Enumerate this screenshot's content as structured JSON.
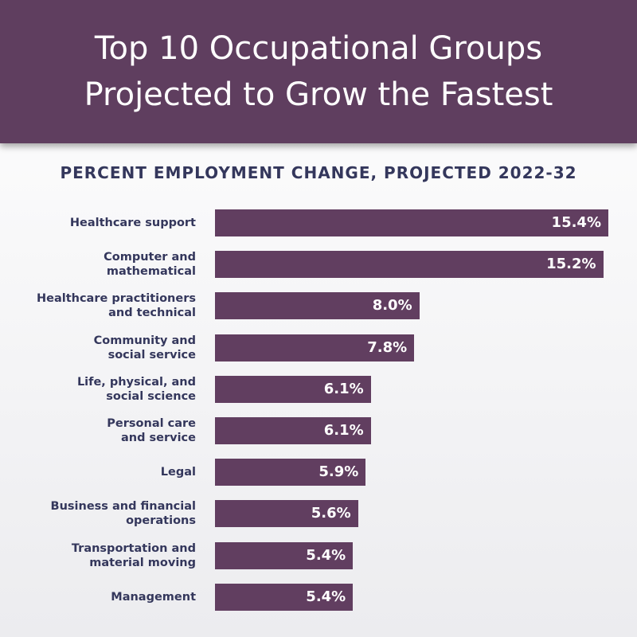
{
  "chart_data": {
    "type": "bar",
    "orientation": "horizontal",
    "title": "Top 10 Occupational Groups\nProjected to Grow the Fastest",
    "subtitle": "PERCENT EMPLOYMENT CHANGE, PROJECTED 2022-32",
    "categories": [
      "Healthcare support",
      "Computer and\nmathematical",
      "Healthcare practitioners\nand technical",
      "Community and\nsocial service",
      "Life, physical, and\nsocial science",
      "Personal care\nand service",
      "Legal",
      "Business and financial\noperations",
      "Transportation and\nmaterial moving",
      "Management"
    ],
    "values": [
      15.4,
      15.2,
      8.0,
      7.8,
      6.1,
      6.1,
      5.9,
      5.6,
      5.4,
      5.4
    ],
    "value_labels": [
      "15.4%",
      "15.2%",
      "8.0%",
      "7.8%",
      "6.1%",
      "6.1%",
      "5.9%",
      "5.6%",
      "5.4%",
      "5.4%"
    ],
    "color": "#613e60"
  }
}
